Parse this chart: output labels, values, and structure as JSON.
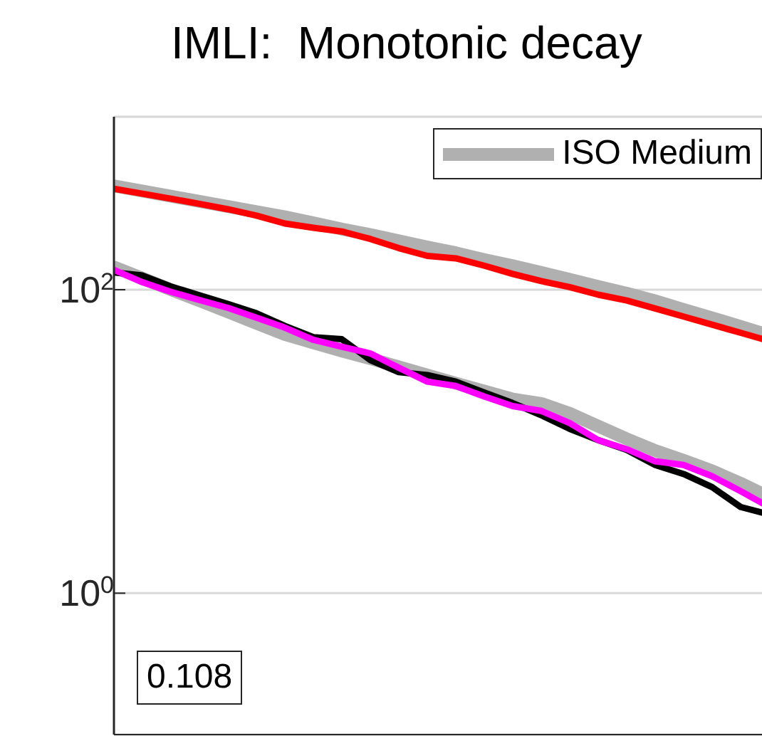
{
  "chart_data": {
    "type": "line",
    "title": "IMLI:  Monotonic decay",
    "log": "y",
    "grid": "y",
    "legend": "top right",
    "marker": "none",
    "line_style": "solid",
    "tick_labels": "y",
    "categories": [
      null,
      null,
      null,
      null,
      null,
      null,
      null,
      null,
      null,
      null,
      null,
      null,
      null,
      null,
      null,
      null,
      null,
      null,
      null,
      null,
      null,
      null,
      null,
      null
    ],
    "ylim": [
      0.117,
      1380
    ],
    "yticks": [
      {
        "value": 1,
        "label": "10$^{0}$"
      },
      {
        "value": 100,
        "label": "10$^{2}$"
      }
    ],
    "annotations": [
      "0.108"
    ],
    "series": [
      {
        "name": "ISO Medium",
        "color": "#b0b0b0",
        "values": [
          483,
          447,
          413,
          382,
          353,
          327,
          302,
          276,
          251,
          231,
          210,
          191,
          175,
          158,
          144,
          130,
          117,
          105,
          94.8,
          84.5,
          74.1,
          65.2,
          57.3,
          50.1
        ]
      },
      {
        "color": "#b0b0b0",
        "values": [
          141,
          119,
          100,
          84.7,
          71.4,
          60.1,
          50.7,
          44.7,
          39.5,
          35.1,
          31,
          27.4,
          24.2,
          21.5,
          19,
          17.8,
          15.3,
          12.6,
          10.4,
          8.7,
          7.5,
          6.4,
          5.3,
          4.3
        ]
      },
      {
        "color": "#ff0000",
        "values": [
          463,
          429,
          398,
          368,
          339,
          308,
          273,
          256,
          242,
          216,
          188,
          167,
          161,
          144,
          127,
          114,
          104,
          92.7,
          84.9,
          75.2,
          66.5,
          58.8,
          52,
          46
        ]
      },
      {
        "color": "#000000",
        "values": [
          130,
          124,
          105,
          92,
          80.6,
          70,
          57.7,
          48.6,
          47.2,
          34.4,
          28.6,
          27.4,
          24.8,
          21,
          17.9,
          14.9,
          12.1,
          10.2,
          8.8,
          7,
          6.1,
          5,
          3.7,
          3.3
        ]
      },
      {
        "color": "#ff00ff",
        "values": [
          135,
          112,
          96.8,
          85.5,
          75.9,
          65.5,
          56.2,
          46.7,
          42.1,
          38,
          30.6,
          24.8,
          23.2,
          19.8,
          17.1,
          15.9,
          13.2,
          10.2,
          8.9,
          7.4,
          7,
          5.9,
          4.7,
          3.7
        ]
      }
    ]
  }
}
